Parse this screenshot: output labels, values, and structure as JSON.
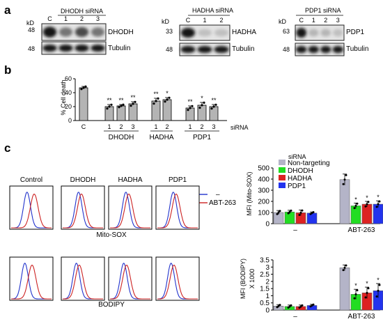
{
  "panel_labels": {
    "a": "a",
    "b": "b",
    "c": "c"
  },
  "blots": {
    "unit_label": "kD",
    "tubulin_label": "Tubulin",
    "dhodh": {
      "title": "DHODH siRNA",
      "lanes": [
        "C",
        "1",
        "2",
        "3"
      ],
      "target": "DHODH",
      "mw_target": "48",
      "mw_tubulin": "48",
      "target_intensity": [
        1.0,
        0.55,
        0.75,
        0.55
      ],
      "tubulin_intensity": [
        1.0,
        1.0,
        1.0,
        1.0
      ]
    },
    "hadha": {
      "title": "HADHA siRNA",
      "lanes": [
        "C",
        "1",
        "2"
      ],
      "target": "HADHA",
      "mw_target": "33",
      "mw_tubulin": "48",
      "target_intensity": [
        1.0,
        0.2,
        0.2
      ],
      "tubulin_intensity": [
        1.0,
        1.0,
        1.0
      ]
    },
    "pdp1": {
      "title": "PDP1 siRNA",
      "lanes": [
        "C",
        "1",
        "2",
        "3"
      ],
      "target": "PDP1",
      "mw_target": "63",
      "mw_tubulin": "48",
      "target_intensity": [
        1.0,
        0.25,
        0.25,
        0.2
      ],
      "tubulin_intensity": [
        1.0,
        1.0,
        1.0,
        1.0
      ]
    }
  },
  "flow": {
    "conditions": [
      "Control",
      "DHODH",
      "HADHA",
      "PDP1"
    ],
    "row1_label": "Mito-SOX",
    "row2_label": "BODIPY",
    "legend": [
      {
        "label": "–",
        "color": "#2233cc"
      },
      {
        "label": "ABT-263",
        "color": "#cc2222"
      }
    ]
  },
  "chart_data": [
    {
      "type": "bar",
      "ylabel": "% Cell death",
      "ylim": [
        0,
        60
      ],
      "yticks": [
        0,
        20,
        40,
        60
      ],
      "categories": [
        "C",
        "1",
        "2",
        "3",
        "1",
        "2",
        "1",
        "2",
        "3"
      ],
      "groups": [
        {
          "label": "DHODH",
          "indices": [
            1,
            2,
            3
          ]
        },
        {
          "label": "HADHA",
          "indices": [
            4,
            5
          ]
        },
        {
          "label": "PDP1",
          "indices": [
            6,
            7,
            8
          ]
        }
      ],
      "xlabel_right": "siRNA",
      "values": [
        47,
        20,
        21,
        24,
        28,
        30,
        18,
        22,
        20
      ],
      "errors": [
        2,
        3,
        2,
        3,
        4,
        3,
        3,
        4,
        3
      ],
      "significance": [
        "",
        "**",
        "**",
        "**",
        "**",
        "*",
        "**",
        "*",
        "**"
      ],
      "bar_color": "#b4b4b4"
    },
    {
      "type": "bar",
      "ylabel": "MFI (Mito-SOX)",
      "ylim": [
        0,
        500
      ],
      "yticks": [
        0,
        100,
        200,
        300,
        400,
        500
      ],
      "categories": [
        "–",
        "ABT-263"
      ],
      "legend_title": "siRNA",
      "series": [
        {
          "name": "Non-targeting",
          "color": "#b4b4c8",
          "values": [
            100,
            395
          ],
          "errors": [
            18,
            50
          ],
          "significance": [
            "",
            ""
          ]
        },
        {
          "name": "DHODH",
          "color": "#22dd22",
          "values": [
            105,
            160
          ],
          "errors": [
            15,
            25
          ],
          "significance": [
            "",
            "*"
          ]
        },
        {
          "name": "HADHA",
          "color": "#dd2222",
          "values": [
            98,
            175
          ],
          "errors": [
            25,
            25
          ],
          "significance": [
            "",
            "*"
          ]
        },
        {
          "name": "PDP1",
          "color": "#2233ee",
          "values": [
            95,
            175
          ],
          "errors": [
            10,
            30
          ],
          "significance": [
            "",
            "*"
          ]
        }
      ]
    },
    {
      "type": "bar",
      "ylabel": "MFI (BODIPY)",
      "ylabel2": "X 1000",
      "ylim": [
        0,
        3.5
      ],
      "yticks": [
        0,
        0.5,
        1,
        1.5,
        2,
        2.5,
        3,
        3.5
      ],
      "categories": [
        "–",
        "ABT-263"
      ],
      "series": [
        {
          "name": "Non-targeting",
          "color": "#b4b4c8",
          "values": [
            0.28,
            2.95
          ],
          "errors": [
            0.1,
            0.2
          ],
          "significance": [
            "",
            ""
          ]
        },
        {
          "name": "DHODH",
          "color": "#22dd22",
          "values": [
            0.25,
            1.1
          ],
          "errors": [
            0.1,
            0.35
          ],
          "significance": [
            "",
            "*"
          ]
        },
        {
          "name": "HADHA",
          "color": "#dd2222",
          "values": [
            0.25,
            1.2
          ],
          "errors": [
            0.1,
            0.4
          ],
          "significance": [
            "",
            "*"
          ]
        },
        {
          "name": "PDP1",
          "color": "#2233ee",
          "values": [
            0.32,
            1.35
          ],
          "errors": [
            0.08,
            0.5
          ],
          "significance": [
            "",
            "*"
          ]
        }
      ]
    }
  ]
}
